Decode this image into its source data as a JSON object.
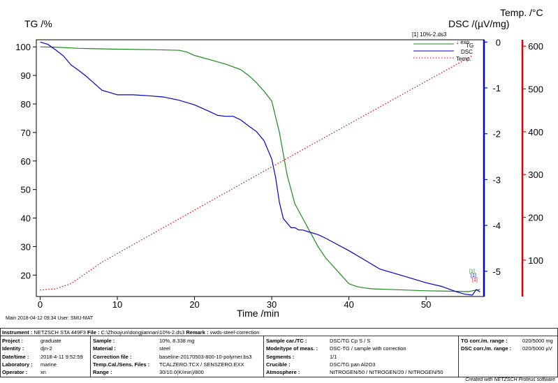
{
  "chart_data": {
    "type": "line",
    "xlabel": "Time /min",
    "x_ticks": [
      0,
      10,
      20,
      30,
      40,
      50
    ],
    "xlim": [
      -0.5,
      57.5
    ],
    "axes": {
      "tg": {
        "label": "TG /%",
        "ticks": [
          20,
          30,
          40,
          50,
          60,
          70,
          80,
          90,
          100
        ],
        "ylim": [
          12.5,
          102.5
        ]
      },
      "dsc": {
        "label": "DSC /(µV/mg)",
        "ticks": [
          0,
          -1,
          -2,
          -3,
          -4,
          -5
        ],
        "ylim": [
          -5.55,
          0.05
        ],
        "color": "#0000c8"
      },
      "temp": {
        "label": "Temp. /°C",
        "ticks": [
          100,
          200,
          300,
          400,
          500,
          600
        ],
        "ylim": [
          15,
          615
        ],
        "color": "#e00000"
      }
    },
    "legend": {
      "file": "[1] 10%-2.ds3",
      "exo": "↓ exo",
      "items": [
        "TG",
        "DSC",
        "Temp."
      ]
    },
    "curve_tags": [
      "[1]",
      "[1]",
      "[1]"
    ],
    "series": [
      {
        "name": "TG",
        "axis": "tg",
        "color": "#1a8a1a",
        "x": [
          0,
          2,
          5,
          10,
          15,
          18,
          19,
          20,
          22,
          24,
          26,
          27,
          28,
          29,
          30,
          31,
          32,
          33,
          34,
          35,
          36,
          37,
          38,
          39,
          40,
          41,
          42,
          43,
          45,
          50,
          54,
          55.5,
          56,
          57
        ],
        "y": [
          100,
          99.9,
          99.5,
          99.2,
          99,
          98.8,
          98.2,
          97,
          95.5,
          94,
          92,
          90,
          87.5,
          84.5,
          81,
          70,
          55,
          45,
          40,
          35,
          30,
          26,
          23,
          20,
          17,
          16,
          15.5,
          15.2,
          15,
          14.5,
          14.3,
          14.2,
          14.5,
          15
        ]
      },
      {
        "name": "DSC",
        "axis": "dsc",
        "color": "#0000c8",
        "x": [
          0,
          1,
          2,
          3,
          4,
          5,
          6,
          7,
          8,
          9,
          10,
          11,
          12,
          14,
          16,
          18,
          20,
          22,
          23,
          24,
          25,
          26,
          27,
          28,
          29,
          30,
          30.5,
          31,
          31.5,
          32,
          32.5,
          33,
          33.5,
          34,
          35,
          36,
          37,
          38,
          40,
          42,
          44,
          45,
          46,
          48,
          50,
          52,
          54,
          55,
          56,
          56.5,
          57
        ],
        "y": [
          0,
          -0.05,
          -0.17,
          -0.3,
          -0.5,
          -0.62,
          -0.75,
          -0.9,
          -1.05,
          -1.1,
          -1.15,
          -1.15,
          -1.15,
          -1.17,
          -1.2,
          -1.27,
          -1.37,
          -1.52,
          -1.6,
          -1.62,
          -1.62,
          -1.7,
          -1.83,
          -1.95,
          -2.15,
          -2.55,
          -2.95,
          -3.5,
          -3.85,
          -3.95,
          -4.05,
          -4.05,
          -4.1,
          -4.1,
          -4.15,
          -4.2,
          -4.28,
          -4.37,
          -4.55,
          -4.75,
          -4.95,
          -5.0,
          -5.05,
          -5.15,
          -5.25,
          -5.33,
          -5.45,
          -5.5,
          -5.52,
          -5.4,
          -5.45
        ]
      },
      {
        "name": "Temp.",
        "axis": "temp",
        "color": "#e00000",
        "x": [
          0,
          2,
          4,
          8,
          20,
          30,
          40,
          50,
          56
        ],
        "y": [
          30,
          33,
          45,
          95,
          217,
          318,
          418,
          518,
          578
        ]
      }
    ]
  },
  "meta_left": "Main   2018-04-12 09:34   User: SMU-MAT",
  "footer": {
    "instrument_label": "Instrument :",
    "instrument_value": "NETZSCH STA 449F3",
    "file_label": "File :",
    "file_value": "C:\\Zhouyun\\dongjiannan\\10%-2.ds3",
    "remark_label": "Remark :",
    "remark_value": "vwds-steel-correction",
    "col1": [
      {
        "label": "Project :",
        "value": "graduate"
      },
      {
        "label": "Identity :",
        "value": "djn-2"
      },
      {
        "label": "Date/time :",
        "value": "2018-4-11 9:52:59"
      },
      {
        "label": "Laboratory :",
        "value": "marine"
      },
      {
        "label": "Operator :",
        "value": "xn"
      }
    ],
    "col2": [
      {
        "label": "Sample :",
        "value": "10%, 8.338 mg"
      },
      {
        "label": "Material :",
        "value": "steel"
      },
      {
        "label": "Correction file :",
        "value": "baseline-20170503-800-10-polymer.bs3"
      },
      {
        "label": "Temp.Cal./Sens. Files :",
        "value": "TCALZERO.TCX / SENSZERO.EXX"
      },
      {
        "label": "Range :",
        "value": "30/10.0(K/min)/800"
      }
    ],
    "col3": [
      {
        "label": "Sample car./TC :",
        "value": "DSC/TG Cp S / S"
      },
      {
        "label": "Mode/type of meas. :",
        "value": "DSC-TG / sample with correction"
      },
      {
        "label": "Segments :",
        "value": "1/1"
      },
      {
        "label": "Crucible :",
        "value": "DSC/TG pan Al2O3"
      },
      {
        "label": "Atmosphere :",
        "value": "NITROGEN/50 / NITROGEN/20 / NITROGEN/50"
      }
    ],
    "col4": [
      {
        "label": "TG corr./m. range :",
        "value": "020/5000 mg"
      },
      {
        "label": "DSC corr./m. range :",
        "value": "020/5000 µV"
      }
    ],
    "credit": "Created with NETZSCH Proteus software"
  }
}
